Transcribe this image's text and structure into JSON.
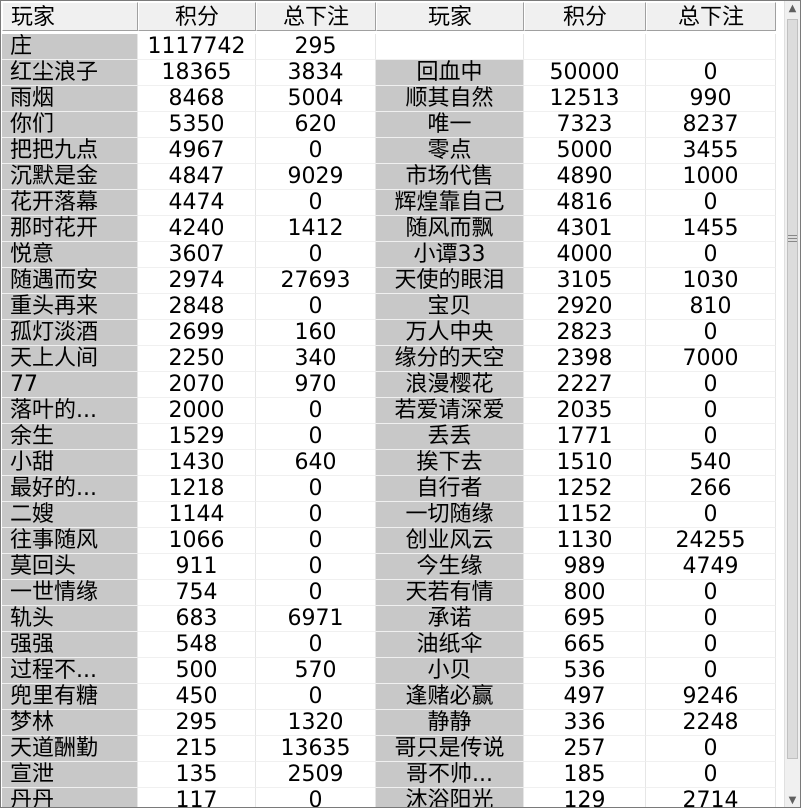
{
  "columns": [
    "玩家",
    "积分",
    "总下注",
    "玩家",
    "积分",
    "总下注"
  ],
  "rows": [
    [
      "庄",
      "1117742",
      "295",
      "",
      "",
      ""
    ],
    [
      "红尘浪子",
      "18365",
      "3834",
      "回血中",
      "50000",
      "0"
    ],
    [
      "雨烟",
      "8468",
      "5004",
      "顺其自然",
      "12513",
      "990"
    ],
    [
      "你们",
      "5350",
      "620",
      "唯一",
      "7323",
      "8237"
    ],
    [
      "把把九点",
      "4967",
      "0",
      "零点",
      "5000",
      "3455"
    ],
    [
      "沉默是金",
      "4847",
      "9029",
      "市场代售",
      "4890",
      "1000"
    ],
    [
      "花开落幕",
      "4474",
      "0",
      "辉煌靠自己",
      "4816",
      "0"
    ],
    [
      "那时花开",
      "4240",
      "1412",
      "随风而飘",
      "4301",
      "1455"
    ],
    [
      "悦意",
      "3607",
      "0",
      "小谭33",
      "4000",
      "0"
    ],
    [
      "随遇而安",
      "2974",
      "27693",
      "天使的眼泪",
      "3105",
      "1030"
    ],
    [
      "重头再来",
      "2848",
      "0",
      "宝贝",
      "2920",
      "810"
    ],
    [
      "孤灯淡酒",
      "2699",
      "160",
      "万人中央",
      "2823",
      "0"
    ],
    [
      "天上人间",
      "2250",
      "340",
      "缘分的天空",
      "2398",
      "7000"
    ],
    [
      "77",
      "2070",
      "970",
      "浪漫樱花",
      "2227",
      "0"
    ],
    [
      "落叶的...",
      "2000",
      "0",
      "若爱请深爱",
      "2035",
      "0"
    ],
    [
      "余生",
      "1529",
      "0",
      "丢丢",
      "1771",
      "0"
    ],
    [
      "小甜",
      "1430",
      "640",
      "挨下去",
      "1510",
      "540"
    ],
    [
      "最好的...",
      "1218",
      "0",
      "自行者",
      "1252",
      "266"
    ],
    [
      "二嫂",
      "1144",
      "0",
      "一切随缘",
      "1152",
      "0"
    ],
    [
      "往事随风",
      "1066",
      "0",
      "创业风云",
      "1130",
      "24255"
    ],
    [
      "莫回头",
      "911",
      "0",
      "今生缘",
      "989",
      "4749"
    ],
    [
      "一世情缘",
      "754",
      "0",
      "天若有情",
      "800",
      "0"
    ],
    [
      "轨头",
      "683",
      "6971",
      "承诺",
      "695",
      "0"
    ],
    [
      "强强",
      "548",
      "0",
      "油纸伞",
      "665",
      "0"
    ],
    [
      "过程不...",
      "500",
      "570",
      "小贝",
      "536",
      "0"
    ],
    [
      "兜里有糖",
      "450",
      "0",
      "逢赌必赢",
      "497",
      "9246"
    ],
    [
      "梦林",
      "295",
      "1320",
      "静静",
      "336",
      "2248"
    ],
    [
      "天道酬勤",
      "215",
      "13635",
      "哥只是传说",
      "257",
      "0"
    ],
    [
      "宣泄",
      "135",
      "2509",
      "哥不帅...",
      "185",
      "0"
    ],
    [
      "丹丹",
      "117",
      "0",
      "沐浴阳光",
      "129",
      "2714"
    ]
  ]
}
